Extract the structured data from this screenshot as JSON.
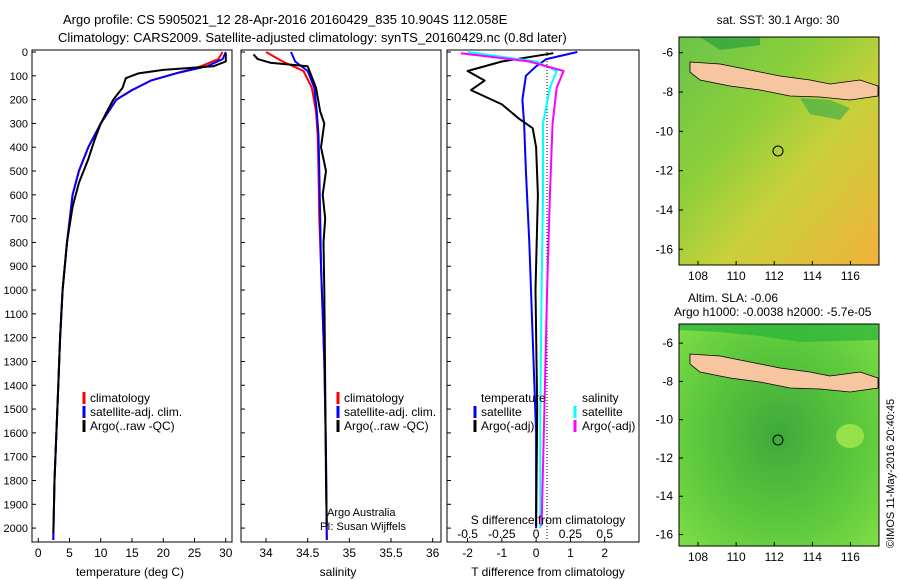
{
  "title": {
    "line1": "Argo profile: CS 5905021_12 28-Apr-2016 20160429_835 10.904S 112.058E",
    "line2": "Climatology: CARS2009. Satellite-adjusted climatology: synTS_20160429.nc (0.8d later)"
  },
  "y_ticks": [
    "0",
    "100",
    "200",
    "300",
    "400",
    "500",
    "600",
    "700",
    "800",
    "900",
    "1000",
    "1100",
    "1200",
    "1300",
    "1400",
    "1500",
    "1600",
    "1700",
    "1800",
    "1900",
    "2000"
  ],
  "footer": {
    "vertical_text": "©IMOS 11-May-2016 20:40:45",
    "credit_line1": "Argo Australia",
    "credit_line2": "PI: Susan Wijffels"
  },
  "legend_left": [
    "climatology",
    "satellite-adj. clim.",
    "Argo(..raw -QC)"
  ],
  "legend_diff": {
    "temperature_header": "temperature",
    "salinity_header": "salinity",
    "t_items": [
      "satellite",
      "Argo(-adj)"
    ],
    "s_items": [
      "satellite",
      "Argo(-adj)"
    ]
  },
  "maps": {
    "sst_title": "sat. SST: 30.1  Argo: 30",
    "sla_title1": "Altim. SLA: -0.06",
    "sla_title2": "Argo h1000: -0.0038  h2000: -5.7e-05",
    "lat_ticks": [
      "-6",
      "-8",
      "-10",
      "-12",
      "-14",
      "-16"
    ],
    "lon_ticks": [
      "108",
      "110",
      "112",
      "114",
      "116"
    ]
  },
  "colors": {
    "climatology": "#ff0000",
    "satellite": "#0000ff",
    "argo": "#000000",
    "sal_satellite": "#00ffff",
    "sal_argo": "#ff00ff",
    "land": "#f7c59f"
  },
  "chart_data": [
    {
      "type": "line",
      "xlabel": "temperature (deg C)",
      "ylabel": "",
      "xlim": [
        -1,
        31
      ],
      "ylim": [
        2050,
        0
      ],
      "xticks": [
        "0",
        "5",
        "10",
        "15",
        "20",
        "25",
        "30"
      ],
      "series": [
        {
          "name": "climatology",
          "color": "#ff0000",
          "x": [
            29.5,
            28.8,
            26,
            22,
            18,
            15,
            12.5,
            10,
            8,
            6.5,
            5.5,
            4.6,
            3.9,
            3.5,
            3.2,
            2.9,
            2.6,
            2.4
          ],
          "y": [
            0,
            30,
            60,
            90,
            120,
            160,
            200,
            300,
            400,
            500,
            600,
            800,
            1000,
            1200,
            1400,
            1600,
            1800,
            2050
          ]
        },
        {
          "name": "satellite-adj. clim.",
          "color": "#0000ff",
          "x": [
            30,
            29.5,
            27,
            22,
            18,
            15,
            12.5,
            10,
            8,
            6.5,
            5.5,
            4.6,
            3.9,
            3.5,
            3.2,
            2.9,
            2.6,
            2.4
          ],
          "y": [
            0,
            30,
            60,
            90,
            120,
            160,
            200,
            300,
            400,
            500,
            600,
            800,
            1000,
            1200,
            1400,
            1600,
            1800,
            2050
          ]
        },
        {
          "name": "Argo(..raw -QC)",
          "color": "#000000",
          "x": [
            30,
            30,
            28,
            20,
            16,
            14,
            13.5,
            12,
            11,
            10,
            9,
            8,
            6.5,
            5.5,
            4.6,
            3.9,
            3.5,
            3.2,
            2.9,
            2.6,
            2.4
          ],
          "y": [
            5,
            40,
            60,
            75,
            90,
            110,
            150,
            200,
            250,
            300,
            370,
            450,
            550,
            650,
            800,
            1000,
            1200,
            1400,
            1600,
            1800,
            2020
          ]
        }
      ]
    },
    {
      "type": "line",
      "xlabel": "salinity",
      "ylabel": "",
      "xlim": [
        33.7,
        36.1
      ],
      "ylim": [
        2050,
        0
      ],
      "xticks": [
        "34",
        "34.5",
        "35",
        "35.5",
        "36"
      ],
      "series": [
        {
          "name": "climatology",
          "color": "#ff0000",
          "x": [
            34.0,
            34.2,
            34.45,
            34.55,
            34.6,
            34.62,
            34.63,
            34.64,
            34.66,
            34.68,
            34.7,
            34.71,
            34.72,
            34.73
          ],
          "y": [
            0,
            40,
            80,
            150,
            250,
            350,
            500,
            700,
            900,
            1100,
            1300,
            1500,
            1700,
            2050
          ]
        },
        {
          "name": "satellite-adj. clim.",
          "color": "#0000ff",
          "x": [
            34.3,
            34.35,
            34.5,
            34.58,
            34.61,
            34.63,
            34.64,
            34.65,
            34.66,
            34.68,
            34.7,
            34.71,
            34.72,
            34.73
          ],
          "y": [
            0,
            40,
            80,
            150,
            250,
            350,
            500,
            700,
            900,
            1100,
            1300,
            1500,
            1700,
            2050
          ]
        },
        {
          "name": "Argo(..raw -QC)",
          "color": "#000000",
          "x": [
            33.85,
            33.9,
            34.05,
            34.5,
            34.6,
            34.65,
            34.7,
            34.66,
            34.72,
            34.68,
            34.71,
            34.69,
            34.7,
            34.71,
            34.72,
            34.73
          ],
          "y": [
            10,
            30,
            45,
            60,
            150,
            250,
            300,
            400,
            500,
            600,
            700,
            800,
            1000,
            1400,
            1800,
            1990
          ]
        }
      ]
    },
    {
      "type": "line",
      "xlabel": "T difference from climatology",
      "x2label": "S difference from climatology",
      "ylabel": "",
      "xlim": [
        -2.6,
        3
      ],
      "ylim": [
        2050,
        0
      ],
      "xticks": [
        "-2",
        "-1",
        "0",
        "1",
        "2"
      ],
      "x2ticks": [
        "-0.5",
        "-0.25",
        "0",
        "0.25",
        "0.5"
      ],
      "series": [
        {
          "name": "satellite",
          "group": "temperature",
          "color": "#0000ff",
          "x": [
            1.2,
            0.3,
            0.0,
            -0.3,
            -0.4,
            -0.35,
            -0.3,
            -0.2,
            -0.1,
            0.0,
            0.0
          ],
          "y": [
            0,
            30,
            60,
            100,
            200,
            300,
            500,
            800,
            1200,
            1600,
            2000
          ]
        },
        {
          "name": "Argo(-adj)",
          "group": "temperature",
          "color": "#000000",
          "x": [
            0.5,
            -1.0,
            -2.0,
            -1.5,
            -1.9,
            -1.0,
            -0.5,
            -0.1,
            0.0,
            0.05,
            -0.02,
            0.03,
            0.0
          ],
          "y": [
            5,
            40,
            80,
            120,
            160,
            220,
            280,
            320,
            400,
            600,
            1000,
            1500,
            1990
          ]
        },
        {
          "name": "satellite",
          "group": "salinity",
          "color": "#00ffff",
          "x": [
            -0.5,
            0.0,
            0.15,
            0.1,
            0.05,
            0.05,
            0.04,
            0.03,
            0.03
          ],
          "y": [
            0,
            40,
            80,
            150,
            300,
            600,
            1000,
            1500,
            2000
          ]
        },
        {
          "name": "Argo(-adj)",
          "group": "salinity",
          "color": "#ff00ff",
          "x": [
            -0.55,
            -0.05,
            0.2,
            0.15,
            0.12,
            0.1,
            0.08,
            0.06,
            0.04
          ],
          "y": [
            5,
            40,
            80,
            150,
            300,
            600,
            1000,
            1500,
            1990
          ]
        }
      ]
    }
  ]
}
